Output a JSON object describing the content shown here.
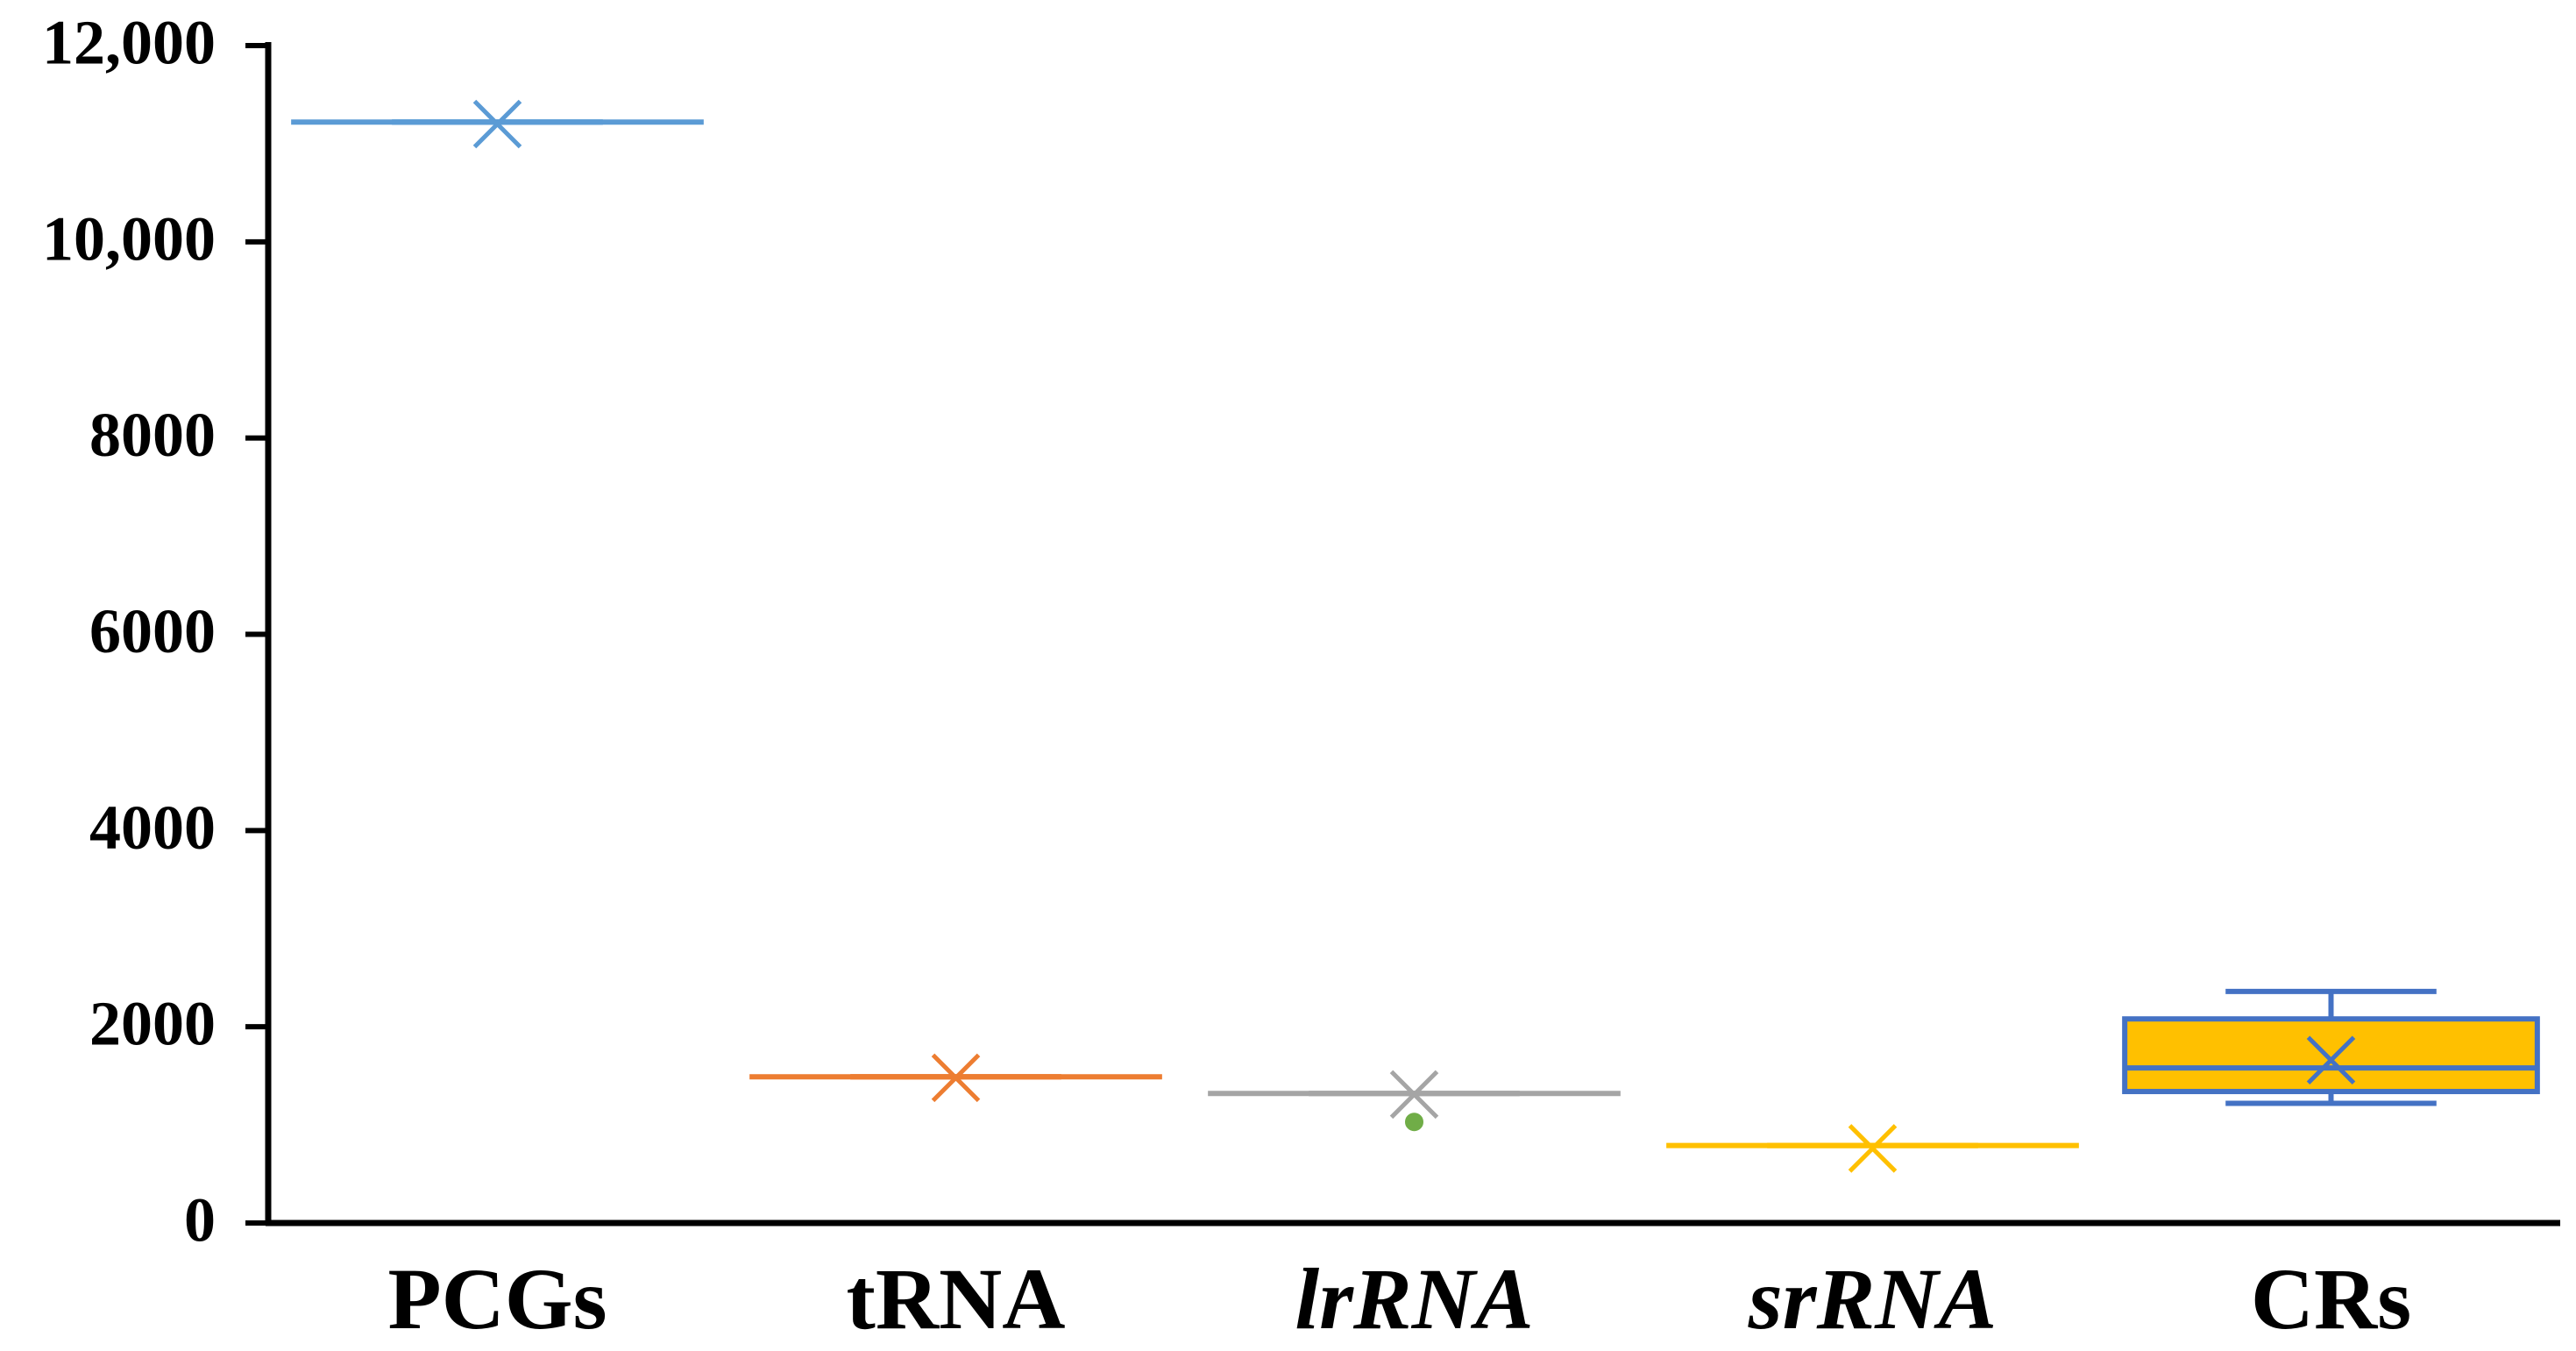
{
  "chart_data": {
    "type": "box",
    "categories": [
      "PCGs",
      "tRNA",
      "lrRNA",
      "srRNA",
      "CRs"
    ],
    "category_italic": [
      false,
      false,
      true,
      true,
      false
    ],
    "boxes": [
      {
        "color": "#5b9bd5",
        "fill": "#5b9bd5",
        "min": 11220,
        "q1": 11220,
        "median": 11220,
        "q3": 11220,
        "max": 11220,
        "mean": 11200,
        "outliers": []
      },
      {
        "color": "#ed7d31",
        "fill": "#ed7d31",
        "min": 1490,
        "q1": 1490,
        "median": 1490,
        "q3": 1490,
        "max": 1490,
        "mean": 1480,
        "outliers": []
      },
      {
        "color": "#a5a5a5",
        "fill": "#a5a5a5",
        "min": 1320,
        "q1": 1320,
        "median": 1320,
        "q3": 1320,
        "max": 1320,
        "mean": 1310,
        "outliers": [
          1030
        ],
        "outlier_color": "#70ad47"
      },
      {
        "color": "#ffc000",
        "fill": "#ffc000",
        "min": 790,
        "q1": 790,
        "median": 790,
        "q3": 790,
        "max": 790,
        "mean": 760,
        "outliers": []
      },
      {
        "color": "#4472c4",
        "fill": "#ffc000",
        "min": 1220,
        "q1": 1340,
        "median": 1580,
        "q3": 2080,
        "max": 2360,
        "mean": 1660,
        "outliers": []
      }
    ],
    "ylim": [
      0,
      12000
    ],
    "yticks": [
      0,
      2000,
      4000,
      6000,
      8000,
      {
        "value": 10000,
        "label": "10,000"
      },
      {
        "value": 12000,
        "label": "12,000"
      }
    ]
  }
}
